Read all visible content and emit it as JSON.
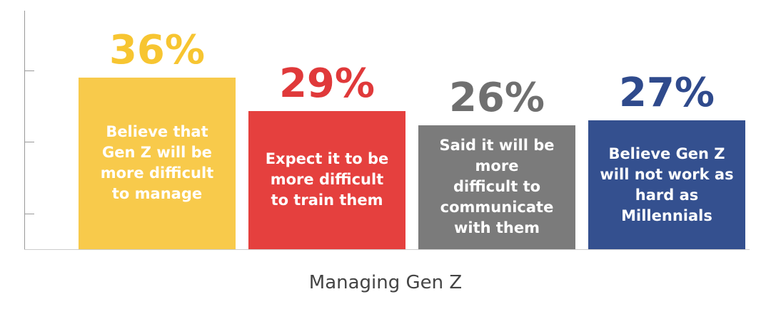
{
  "chart_data": {
    "type": "bar",
    "title": "Managing Gen Z",
    "categories": [
      "Believe that\nGen Z will be\nmore difficult\nto manage",
      "Expect it to be\nmore difficult\nto train them",
      "Said it will be more\ndifficult to\ncommunicate\nwith them",
      "Believe Gen Z\nwill not work as\nhard as Millennials"
    ],
    "values": [
      36,
      29,
      26,
      27
    ],
    "value_labels": [
      "36%",
      "29%",
      "26%",
      "27%"
    ],
    "colors": [
      "#f8ca4b",
      "#e5403e",
      "#7b7b7b",
      "#34508f"
    ],
    "label_colors": [
      "#f7c531",
      "#e0393a",
      "#6f6f6f",
      "#2f4a8c"
    ],
    "ylim": [
      0,
      50
    ],
    "yticks": [
      7.5,
      22.5,
      37.5
    ]
  }
}
